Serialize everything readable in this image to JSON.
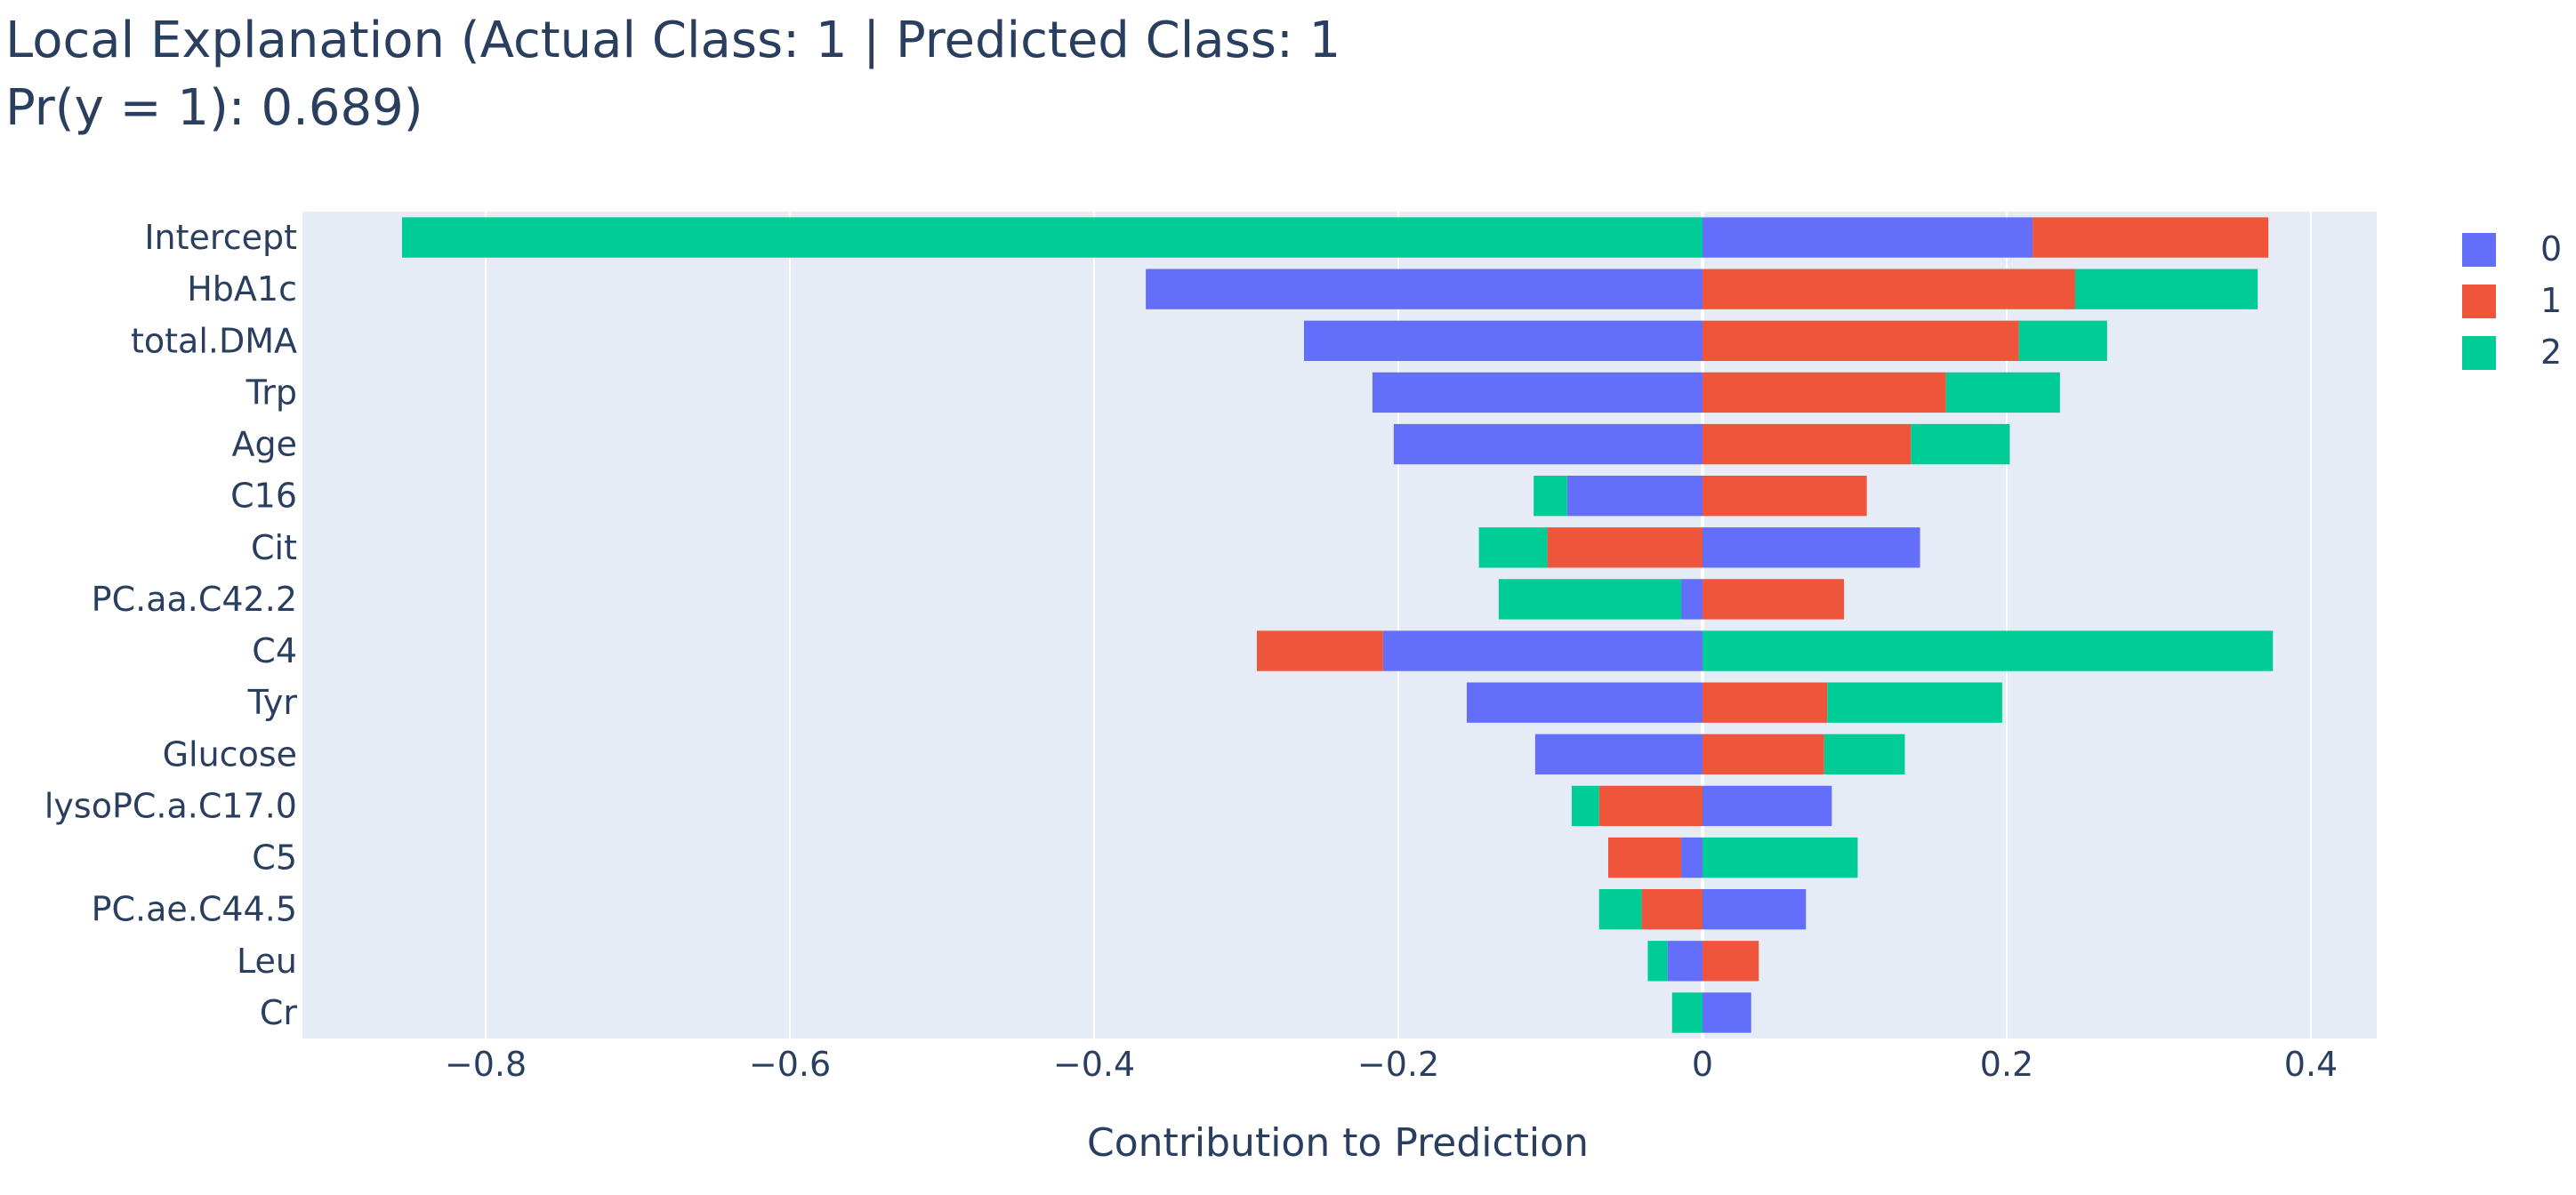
{
  "colors": {
    "plot_bg": "#e5ecf6",
    "grid": "#ffffff",
    "text": "#2a3f5f"
  },
  "chart_data": {
    "type": "bar",
    "orientation": "horizontal",
    "barmode": "relative",
    "title": "Local Explanation (Actual Class: 1 | Predicted Class: 1",
    "subtitle": "Pr(y = 1): 0.689)",
    "xlabel": "Contribution to Prediction",
    "ylabel": "",
    "xlim": [
      -0.92,
      0.44
    ],
    "xticks": [
      -0.8,
      -0.6,
      -0.4,
      -0.2,
      0,
      0.2,
      0.4
    ],
    "xtick_labels": [
      "−0.8",
      "−0.6",
      "−0.4",
      "−0.2",
      "0",
      "0.2",
      "0.4"
    ],
    "grid": true,
    "legend_position": "right",
    "categories": [
      "Intercept",
      "HbA1c",
      "total.DMA",
      "Trp",
      "Age",
      "C16",
      "Cit",
      "PC.aa.C42.2",
      "C4",
      "Tyr",
      "Glucose",
      "lysoPC.a.C17.0",
      "C5",
      "PC.ae.C44.5",
      "Leu",
      "Cr"
    ],
    "series": [
      {
        "name": "0",
        "color": "#636efa",
        "values": [
          0.217,
          -0.366,
          -0.262,
          -0.217,
          -0.203,
          -0.089,
          0.143,
          -0.014,
          -0.21,
          -0.155,
          -0.11,
          0.085,
          -0.014,
          0.068,
          -0.023,
          0.032
        ]
      },
      {
        "name": "1",
        "color": "#ef553b",
        "values": [
          0.155,
          0.245,
          0.208,
          0.16,
          0.137,
          0.108,
          -0.102,
          0.093,
          -0.083,
          0.082,
          0.08,
          -0.068,
          -0.048,
          -0.04,
          0.037,
          0
        ]
      },
      {
        "name": "2",
        "color": "#00cc96",
        "values": [
          -0.855,
          0.12,
          0.058,
          0.075,
          0.065,
          -0.022,
          -0.045,
          -0.12,
          0.375,
          0.115,
          0.053,
          -0.018,
          0.102,
          -0.028,
          -0.013,
          -0.02
        ]
      }
    ]
  }
}
